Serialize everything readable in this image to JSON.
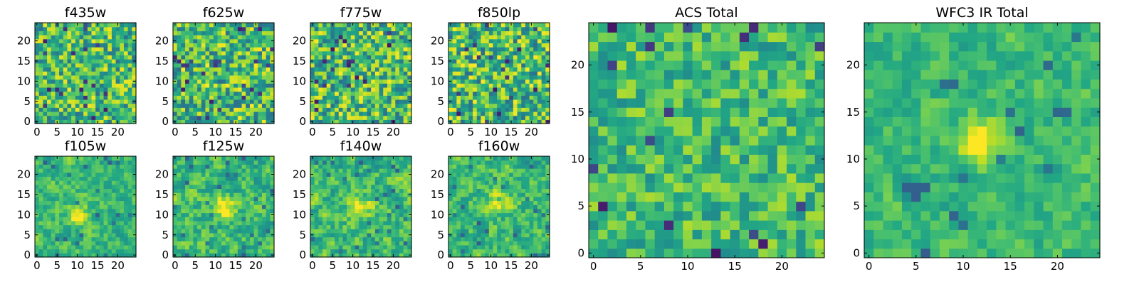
{
  "chart_data": [
    {
      "type": "heatmap",
      "title": "f435w",
      "colormap": "viridis",
      "grid_size": 25,
      "x_ticks": [
        0,
        5,
        10,
        15,
        20
      ],
      "y_ticks": [
        0,
        5,
        10,
        15,
        20
      ],
      "xlim": [
        -0.5,
        24.5
      ],
      "ylim": [
        -0.5,
        24.5
      ],
      "source_peak": null,
      "noise_seed": 11,
      "noise_level": 0.3
    },
    {
      "type": "heatmap",
      "title": "f625w",
      "colormap": "viridis",
      "grid_size": 25,
      "x_ticks": [
        0,
        5,
        10,
        15,
        20
      ],
      "y_ticks": [
        0,
        5,
        10,
        15,
        20
      ],
      "xlim": [
        -0.5,
        24.5
      ],
      "ylim": [
        -0.5,
        24.5
      ],
      "source_peak": null,
      "noise_seed": 23,
      "noise_level": 0.32
    },
    {
      "type": "heatmap",
      "title": "f775w",
      "colormap": "viridis",
      "grid_size": 25,
      "x_ticks": [
        0,
        5,
        10,
        15,
        20
      ],
      "y_ticks": [
        0,
        5,
        10,
        15,
        20
      ],
      "xlim": [
        -0.5,
        24.5
      ],
      "ylim": [
        -0.5,
        24.5
      ],
      "source_peak": null,
      "noise_seed": 37,
      "noise_level": 0.32
    },
    {
      "type": "heatmap",
      "title": "f850lp",
      "colormap": "viridis",
      "grid_size": 25,
      "x_ticks": [
        0,
        5,
        10,
        15,
        20
      ],
      "y_ticks": [
        0,
        5,
        10,
        15,
        20
      ],
      "xlim": [
        -0.5,
        24.5
      ],
      "ylim": [
        -0.5,
        24.5
      ],
      "source_peak": null,
      "noise_seed": 41,
      "noise_level": 0.32
    },
    {
      "type": "heatmap",
      "title": "f105w",
      "colormap": "viridis",
      "grid_size": 25,
      "x_ticks": [
        0,
        5,
        10,
        15,
        20
      ],
      "y_ticks": [
        0,
        5,
        10,
        15,
        20
      ],
      "xlim": [
        -0.5,
        24.5
      ],
      "ylim": [
        -0.5,
        24.5
      ],
      "source_peak": [
        10,
        10
      ],
      "noise_seed": 53,
      "noise_level": 0.22,
      "smooth": true
    },
    {
      "type": "heatmap",
      "title": "f125w",
      "colormap": "viridis",
      "grid_size": 25,
      "x_ticks": [
        0,
        5,
        10,
        15,
        20
      ],
      "y_ticks": [
        0,
        5,
        10,
        15,
        20
      ],
      "xlim": [
        -0.5,
        24.5
      ],
      "ylim": [
        -0.5,
        24.5
      ],
      "source_peak": [
        12,
        12
      ],
      "noise_seed": 67,
      "noise_level": 0.25,
      "smooth": true
    },
    {
      "type": "heatmap",
      "title": "f140w",
      "colormap": "viridis",
      "grid_size": 25,
      "x_ticks": [
        0,
        5,
        10,
        15,
        20
      ],
      "y_ticks": [
        0,
        5,
        10,
        15,
        20
      ],
      "xlim": [
        -0.5,
        24.5
      ],
      "ylim": [
        -0.5,
        24.5
      ],
      "source_peak": [
        12,
        12
      ],
      "noise_seed": 71,
      "noise_level": 0.27,
      "smooth": true
    },
    {
      "type": "heatmap",
      "title": "f160w",
      "colormap": "viridis",
      "grid_size": 25,
      "x_ticks": [
        0,
        5,
        10,
        15,
        20
      ],
      "y_ticks": [
        0,
        5,
        10,
        15,
        20
      ],
      "xlim": [
        -0.5,
        24.5
      ],
      "ylim": [
        -0.5,
        24.5
      ],
      "source_peak": [
        12,
        13
      ],
      "noise_seed": 83,
      "noise_level": 0.25,
      "smooth": true
    },
    {
      "type": "heatmap",
      "title": "ACS Total",
      "colormap": "viridis",
      "grid_size": 25,
      "x_ticks": [
        0,
        5,
        10,
        15,
        20
      ],
      "y_ticks": [
        0,
        5,
        10,
        15,
        20
      ],
      "xlim": [
        -0.5,
        24.5
      ],
      "ylim": [
        -0.5,
        24.5
      ],
      "source_peak": null,
      "noise_seed": 97,
      "noise_level": 0.2
    },
    {
      "type": "heatmap",
      "title": "WFC3 IR Total",
      "colormap": "viridis",
      "grid_size": 25,
      "x_ticks": [
        0,
        5,
        10,
        15,
        20
      ],
      "y_ticks": [
        0,
        5,
        10,
        15,
        20
      ],
      "xlim": [
        -0.5,
        24.5
      ],
      "ylim": [
        -0.5,
        24.5
      ],
      "source_peak": [
        12,
        12
      ],
      "noise_seed": 101,
      "noise_level": 0.18,
      "smooth": true
    }
  ]
}
